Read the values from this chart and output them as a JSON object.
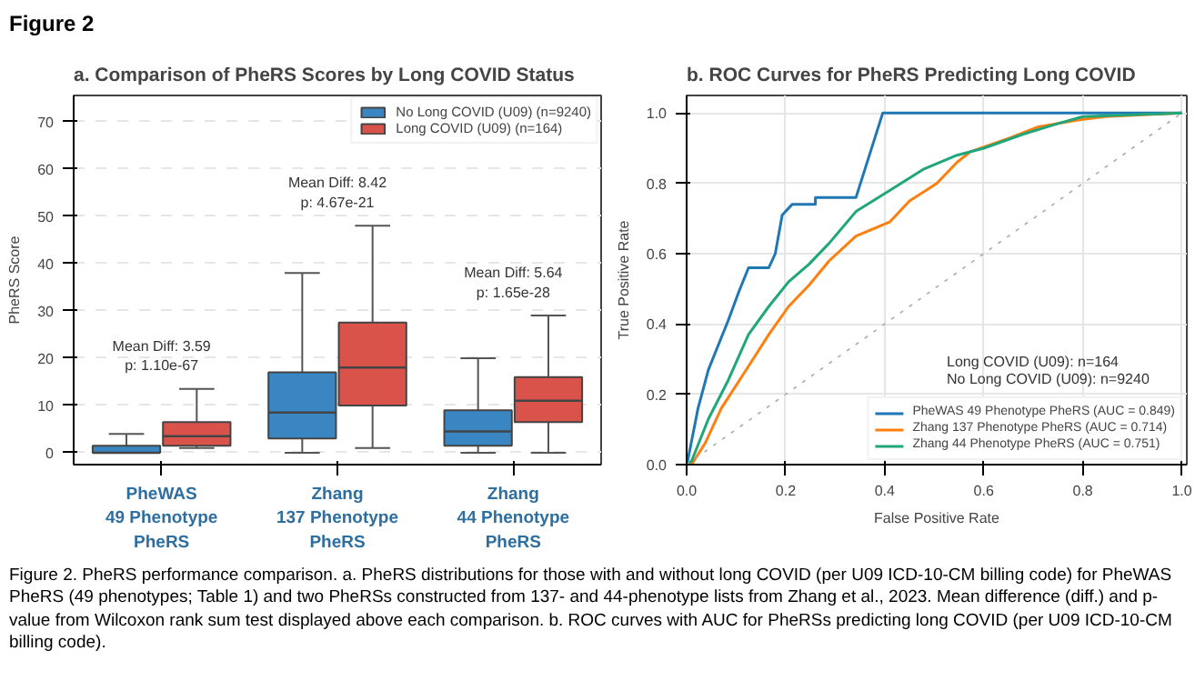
{
  "chart_data": [
    {
      "type": "box",
      "title": "a. Comparison of PheRS Scores by Long COVID Status",
      "ylabel": "PheRS Score",
      "categories": [
        "PheWAS\n49 Phenotype\nPheRS",
        "Zhang\n137 Phenotype\nPheRS",
        "Zhang\n44 Phenotype\nPheRS"
      ],
      "series": [
        {
          "name": "No Long COVID (U09) (n=9240)",
          "color": "#3a86c3",
          "boxes": [
            {
              "low": 0,
              "q1": 0,
              "median": 0,
              "q3": 1.5,
              "high": 4
            },
            {
              "low": 0,
              "q1": 3,
              "median": 8.5,
              "q3": 17,
              "high": 38
            },
            {
              "low": 0,
              "q1": 1.5,
              "median": 4.5,
              "q3": 9,
              "high": 20
            }
          ]
        },
        {
          "name": "Long COVID (U09) (n=164)",
          "color": "#d9534a",
          "boxes": [
            {
              "low": 1,
              "q1": 1.5,
              "median": 3.5,
              "q3": 6.5,
              "high": 13.5
            },
            {
              "low": 1,
              "q1": 10,
              "median": 18,
              "q3": 27.5,
              "high": 48
            },
            {
              "low": 0,
              "q1": 6.5,
              "median": 11,
              "q3": 16,
              "high": 29
            }
          ]
        }
      ],
      "ylim": [
        -2.5,
        75.5
      ],
      "yticks": [
        0,
        10,
        20,
        30,
        40,
        50,
        60,
        70
      ],
      "grid": "y",
      "legend": "top right",
      "annotations": [
        "Figure 2",
        "Mean Diff: 3.59\np: 1.10e-67",
        "Mean Diff: 8.42\np: 4.67e-21",
        "Mean Diff: 5.64\np: 1.65e-28",
        "Figure 2. PheRS performance comparison. a. PheRS distributions for those with and without long COVID (per U09 ICD-10-CM billing code) for PheWAS PheRS (49 phenotypes; Table 1) and two PheRSs constructed from 137- and 44-phenotype lists from Zhang et al., 2023. Mean difference (diff.) and p-value from Wilcoxon rank sum test displayed above each comparison. b. ROC curves with AUC for PheRSs predicting long COVID (per U09 ICD-10-CM billing code)."
      ]
    },
    {
      "type": "line",
      "title": "b. ROC Curves for PheRS Predicting Long COVID",
      "xlabel": "False Positive Rate",
      "ylabel": "True Positive Rate",
      "series": [
        {
          "name": "PheWAS 49 Phenotype PheRS (AUC = 0.849)",
          "color": "#1f77b4",
          "x": [
            0,
            0.002,
            0.023,
            0.044,
            0.064,
            0.084,
            0.105,
            0.125,
            0.166,
            0.179,
            0.193,
            0.213,
            0.26,
            0.26,
            0.342,
            0.396,
            1.0
          ],
          "values": [
            0,
            0.01,
            0.16,
            0.27,
            0.34,
            0.41,
            0.49,
            0.56,
            0.56,
            0.6,
            0.71,
            0.74,
            0.74,
            0.76,
            0.76,
            1.0,
            1.0
          ]
        },
        {
          "name": "Zhang 137 Phenotype PheRS (AUC = 0.714)",
          "color": "#ff7f0e",
          "x": [
            0,
            0.01,
            0.037,
            0.07,
            0.125,
            0.166,
            0.206,
            0.247,
            0.288,
            0.342,
            0.41,
            0.45,
            0.505,
            0.546,
            0.573,
            0.654,
            0.708,
            0.79,
            0.844,
            1.0
          ],
          "values": [
            0,
            0.0,
            0.06,
            0.16,
            0.28,
            0.37,
            0.45,
            0.51,
            0.58,
            0.65,
            0.69,
            0.75,
            0.8,
            0.86,
            0.89,
            0.93,
            0.96,
            0.98,
            0.99,
            1.0
          ]
        },
        {
          "name": "Zhang 44 Phenotype PheRS (AUC = 0.751)",
          "color": "#1fa67a",
          "x": [
            0,
            0.01,
            0.044,
            0.084,
            0.125,
            0.166,
            0.206,
            0.247,
            0.288,
            0.342,
            0.41,
            0.478,
            0.546,
            0.6,
            0.68,
            0.75,
            0.8,
            1.0
          ],
          "values": [
            0,
            0.01,
            0.13,
            0.24,
            0.37,
            0.45,
            0.52,
            0.57,
            0.63,
            0.72,
            0.78,
            0.84,
            0.88,
            0.9,
            0.94,
            0.97,
            0.99,
            1.0
          ]
        },
        {
          "color": "#aaaaaa",
          "line_style": "dotted",
          "x": [
            0,
            1
          ],
          "values": [
            0,
            1
          ]
        }
      ],
      "xlim": [
        0,
        1.01
      ],
      "ylim": [
        0,
        1.05
      ],
      "xticks": [
        {
          "value": 0,
          "label": "0.0"
        },
        {
          "value": 0.2,
          "label": "0.2"
        },
        {
          "value": 0.4,
          "label": "0.4"
        },
        {
          "value": 0.6,
          "label": "0.6"
        },
        {
          "value": 0.8,
          "label": "0.8"
        },
        {
          "value": 1,
          "label": "1.0"
        }
      ],
      "yticks": [
        {
          "value": 0,
          "label": "0.0"
        },
        {
          "value": 0.2,
          "label": "0.2"
        },
        {
          "value": 0.4,
          "label": "0.4"
        },
        {
          "value": 0.6,
          "label": "0.6"
        },
        {
          "value": 0.8,
          "label": "0.8"
        },
        {
          "value": 1,
          "label": "1.0"
        }
      ],
      "grid": true,
      "legend": "bottom right",
      "marker": "none",
      "line_style": "solid",
      "annotations": [
        "Long COVID (U09): n=164",
        "No Long COVID (U09): n=9240"
      ]
    }
  ]
}
